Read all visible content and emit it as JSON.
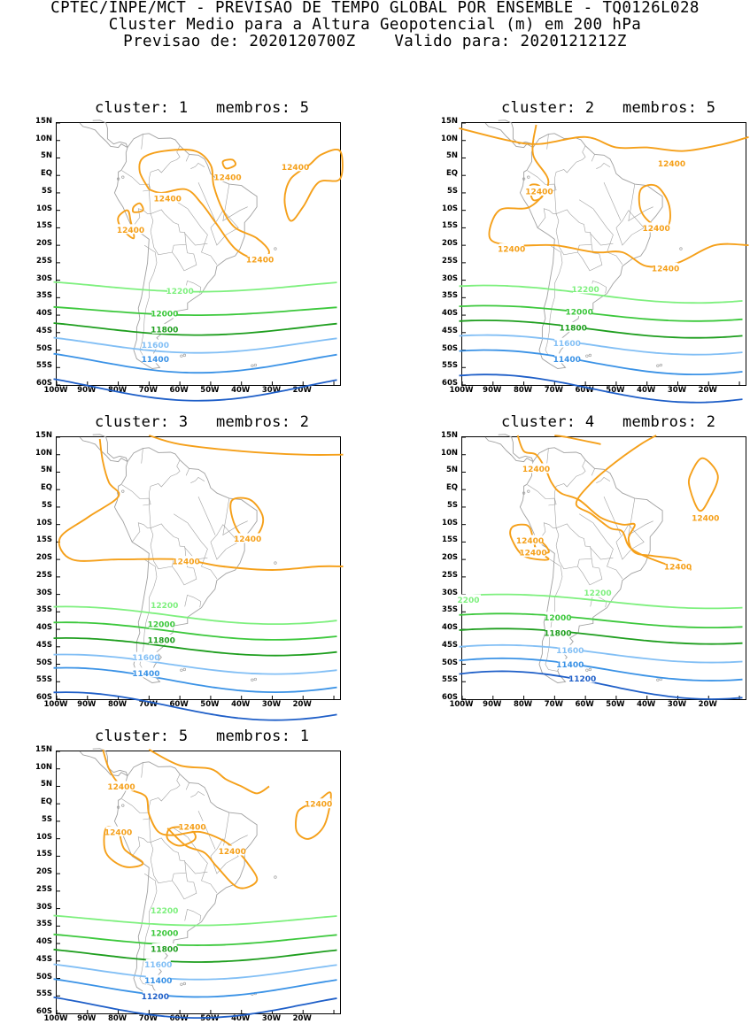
{
  "header": {
    "line1": "CPTEC/INPE/MCT - PREVISAO DE TEMPO GLOBAL POR ENSEMBLE - TQ0126L028",
    "line2": "Cluster Medio para a Altura Geopotencial (m) em 200 hPa",
    "line3": "Previsao de: 2020120700Z    Valido para: 2020121212Z"
  },
  "axes": {
    "lat_labels": [
      "15N",
      "10N",
      "5N",
      "EQ",
      "5S",
      "10S",
      "15S",
      "20S",
      "25S",
      "30S",
      "35S",
      "40S",
      "45S",
      "50S",
      "55S",
      "60S"
    ],
    "lon_labels": [
      "100W",
      "90W",
      "80W",
      "70W",
      "60W",
      "50W",
      "40W",
      "30W",
      "20W"
    ]
  },
  "colors": {
    "c12400": "#f5a01a",
    "c12200": "#7ef07e",
    "c12000": "#3cc83c",
    "c11800": "#1e9e1e",
    "c11600": "#82bff5",
    "c11400": "#3a92e6",
    "c11200": "#1f5fc8",
    "coast": "#a0a0a0"
  },
  "panels": [
    {
      "title": "cluster: 1   membros: 5",
      "labels": {
        "l12400": "12400",
        "l12200": "12200",
        "l12000": "12000",
        "l11800": "11800",
        "l11600": "11600",
        "l11400": "11400"
      }
    },
    {
      "title": "cluster: 2   membros: 5",
      "labels": {
        "l12400": "12400",
        "l12200": "12200",
        "l12000": "12000",
        "l11800": "11800",
        "l11600": "11600",
        "l11400": "11400"
      }
    },
    {
      "title": "cluster: 3   membros: 2",
      "labels": {
        "l12400": "12400",
        "l12200": "12200",
        "l12000": "12000",
        "l11800": "11800",
        "l11600": "11600",
        "l11400": "11400"
      }
    },
    {
      "title": "cluster: 4   membros: 2",
      "labels": {
        "l12400": "12400",
        "l12200": "12200",
        "l2200": "2200",
        "l12000": "12000",
        "l11800": "11800",
        "l11600": "11600",
        "l11400": "11400",
        "l11200": "11200"
      }
    },
    {
      "title": "cluster: 5   membros: 1",
      "labels": {
        "l12400": "12400",
        "l12200": "12200",
        "l12000": "12000",
        "l11800": "11800",
        "l11600": "11600",
        "l11400": "11400",
        "l11200": "11200"
      }
    }
  ]
}
